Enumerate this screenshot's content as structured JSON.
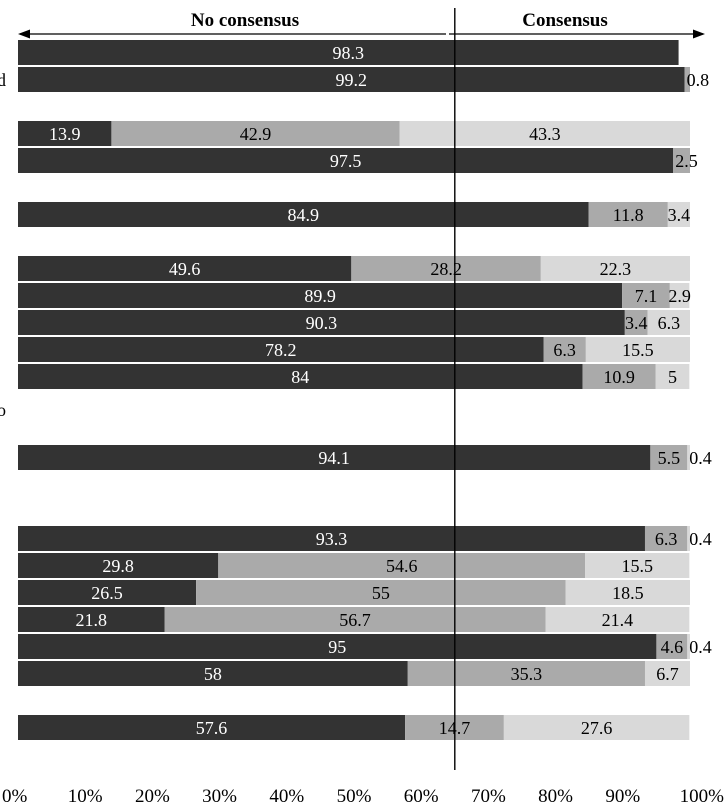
{
  "chart_data": {
    "type": "bar",
    "orientation": "horizontal",
    "stacked": true,
    "normalized_percent": true,
    "title": "",
    "xlabel": "",
    "ylabel": "",
    "xlim": [
      0,
      100
    ],
    "x_ticks": [
      "0%",
      "10%",
      "20%",
      "30%",
      "40%",
      "50%",
      "60%",
      "70%",
      "80%",
      "90%",
      "100%"
    ],
    "grid": false,
    "legend": "none",
    "consensus_threshold": 65,
    "header_left": "No consensus",
    "header_right": "Consensus",
    "cut_labels": [
      "d",
      "o"
    ],
    "colors": [
      "#333333",
      "#aaaaaa",
      "#d9d9d9"
    ],
    "bars": [
      {
        "slot": 0,
        "values": [
          98.3
        ],
        "labels": [
          "98.3"
        ]
      },
      {
        "slot": 1,
        "values": [
          99.2,
          0.8
        ],
        "labels": [
          "99.2",
          "0.8"
        ]
      },
      {
        "slot": 3,
        "values": [
          13.9,
          42.9,
          43.3
        ],
        "labels": [
          "13.9",
          "42.9",
          "43.3"
        ]
      },
      {
        "slot": 4,
        "values": [
          97.5,
          2.5
        ],
        "labels": [
          "97.5",
          "2.5"
        ]
      },
      {
        "slot": 6,
        "values": [
          84.9,
          11.8,
          3.4
        ],
        "labels": [
          "84.9",
          "11.8",
          "3.4"
        ]
      },
      {
        "slot": 8,
        "values": [
          49.6,
          28.2,
          22.3
        ],
        "labels": [
          "49.6",
          "28.2",
          "22.3"
        ]
      },
      {
        "slot": 9,
        "values": [
          89.9,
          7.1,
          2.9
        ],
        "labels": [
          "89.9",
          "7.1",
          "2.9"
        ]
      },
      {
        "slot": 10,
        "values": [
          90.3,
          3.4,
          6.3
        ],
        "labels": [
          "90.3",
          "3.4",
          "6.3"
        ]
      },
      {
        "slot": 11,
        "values": [
          78.2,
          6.3,
          15.5
        ],
        "labels": [
          "78.2",
          "6.3",
          "15.5"
        ]
      },
      {
        "slot": 12,
        "values": [
          84,
          10.9,
          5
        ],
        "labels": [
          "84",
          "10.9",
          "5"
        ]
      },
      {
        "slot": 15,
        "values": [
          94.1,
          5.5,
          0.4
        ],
        "labels": [
          "94.1",
          "5.5",
          "0.4"
        ]
      },
      {
        "slot": 18,
        "values": [
          93.3,
          6.3,
          0.4
        ],
        "labels": [
          "93.3",
          "6.3",
          "0.4"
        ]
      },
      {
        "slot": 19,
        "values": [
          29.8,
          54.6,
          15.5
        ],
        "labels": [
          "29.8",
          "54.6",
          "15.5"
        ]
      },
      {
        "slot": 20,
        "values": [
          26.5,
          55,
          18.5
        ],
        "labels": [
          "26.5",
          "55",
          "18.5"
        ]
      },
      {
        "slot": 21,
        "values": [
          21.8,
          56.7,
          21.4
        ],
        "labels": [
          "21.8",
          "56.7",
          "21.4"
        ]
      },
      {
        "slot": 22,
        "values": [
          95,
          4.6,
          0.4
        ],
        "labels": [
          "95",
          "4.6",
          "0.4"
        ]
      },
      {
        "slot": 23,
        "values": [
          58,
          35.3,
          6.7
        ],
        "labels": [
          "58",
          "35.3",
          "6.7"
        ]
      },
      {
        "slot": 25,
        "values": [
          57.6,
          14.7,
          27.6
        ],
        "labels": [
          "57.6",
          "14.7",
          "27.6"
        ]
      }
    ]
  }
}
